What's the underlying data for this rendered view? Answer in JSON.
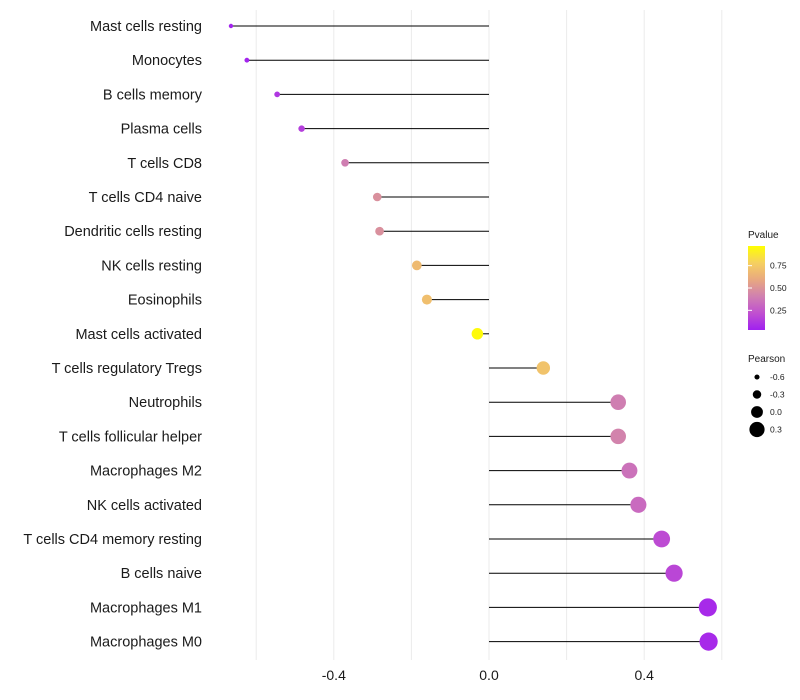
{
  "chart_data": {
    "type": "lollipop",
    "title": "",
    "xlabel": "",
    "ylabel": "",
    "xlim": [
      -0.7,
      0.6
    ],
    "x_ticks": [
      -0.4,
      0.0,
      0.4
    ],
    "x_tick_labels": [
      "-0.4",
      "0.0",
      "0.4"
    ],
    "baseline": 0,
    "categories": [
      "Mast cells resting",
      "Monocytes",
      "B cells memory",
      "Plasma cells",
      "T cells CD8",
      "T cells CD4 naive",
      "Dendritic cells resting",
      "NK cells resting",
      "Eosinophils",
      "Mast cells activated",
      "T cells regulatory  Tregs",
      "Neutrophils",
      "T cells follicular helper",
      "Macrophages M2",
      "NK cells activated",
      "T cells CD4 memory resting",
      "B cells naive",
      "Macrophages M1",
      "Macrophages M0"
    ],
    "pearson": [
      -0.665,
      -0.624,
      -0.546,
      -0.483,
      -0.371,
      -0.288,
      -0.282,
      -0.186,
      -0.16,
      -0.03,
      0.14,
      0.333,
      0.333,
      0.362,
      0.385,
      0.445,
      0.477,
      0.564,
      0.566
    ],
    "pvalue": [
      0.05,
      0.05,
      0.12,
      0.15,
      0.4,
      0.48,
      0.48,
      0.68,
      0.7,
      0.95,
      0.72,
      0.4,
      0.42,
      0.35,
      0.32,
      0.2,
      0.18,
      0.07,
      0.07
    ],
    "legend_color": {
      "title": "Pvalue",
      "ticks": [
        0.75,
        0.5,
        0.25
      ],
      "tick_labels": [
        "0.75",
        "0.50",
        "0.25"
      ],
      "range": [
        0.03,
        0.97
      ],
      "low_color": "#a020f0",
      "mid_color": "#d080b0",
      "high_color": "#ffff00"
    },
    "legend_size": {
      "title": "Pearson",
      "values": [
        -0.6,
        -0.3,
        0.0,
        0.3
      ],
      "labels": [
        "-0.6",
        "-0.3",
        "0.0",
        "0.3"
      ]
    },
    "gradient_stops": [
      "#a020f0",
      "#c050d0",
      "#d080b0",
      "#e8a880",
      "#f6d060",
      "#ffff00"
    ]
  }
}
